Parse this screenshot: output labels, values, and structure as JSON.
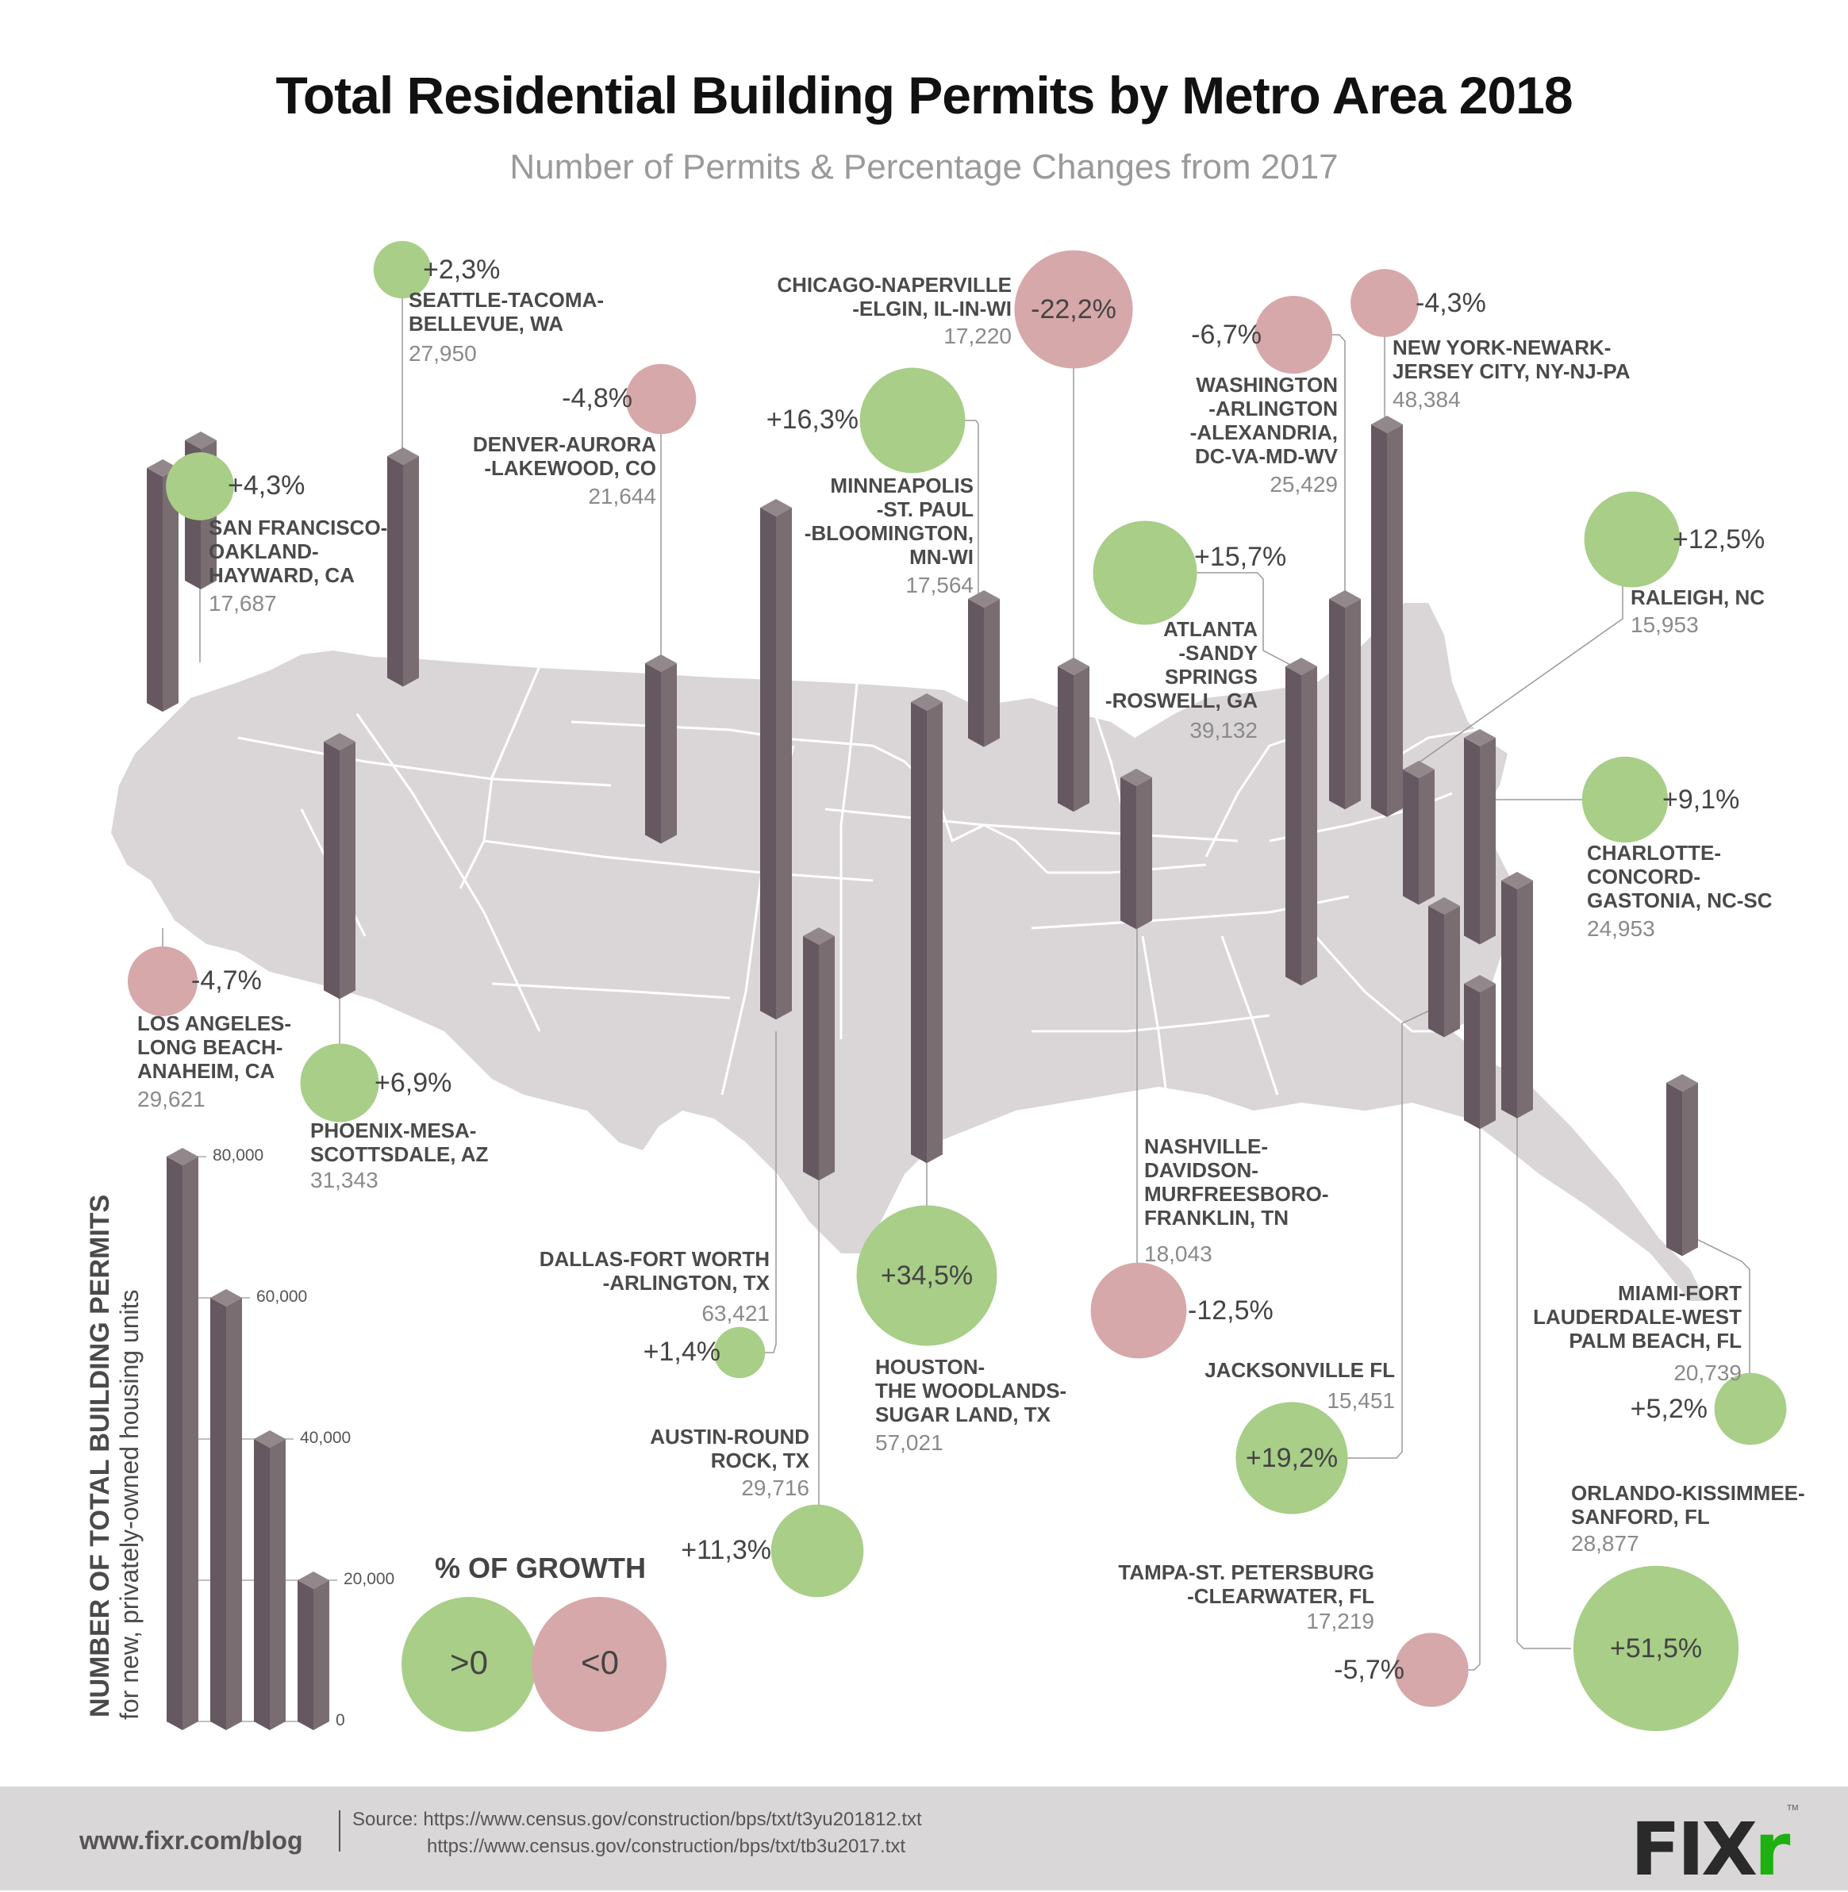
{
  "header": {
    "title": "Total Residential Building Permits by Metro Area 2018",
    "subtitle": "Number of Permits & Percentage Changes from 2017"
  },
  "colors": {
    "positive": "#a8ce88",
    "negative": "#d6a8a9",
    "bar_dark": "#655860",
    "bar_light": "#7a6d72",
    "bar_top": "#92878b",
    "map_fill": "#dad6d8",
    "leader_line": "#9a9a9a"
  },
  "chart_data": {
    "type": "map-bubble-bar",
    "title": "Total Residential Building Permits by Metro Area 2018",
    "subtitle": "Number of Permits & Percentage Changes from 2017",
    "value_axis": {
      "label": "NUMBER OF TOTAL BUILDING PERMITS",
      "sublabel": "for new, privately-owned housing units",
      "ticks": [
        0,
        20000,
        40000,
        60000,
        80000
      ],
      "tick_labels": [
        "0",
        "20,000",
        "40,000",
        "60,000",
        "80,000"
      ],
      "range": [
        0,
        80000
      ]
    },
    "legend": {
      "title": "% OF GROWTH",
      "items": [
        {
          "label": ">0",
          "meaning": "positive growth",
          "color": "positive"
        },
        {
          "label": "<0",
          "meaning": "negative growth",
          "color": "negative"
        }
      ]
    },
    "series": [
      {
        "name": "SEATTLE-TACOMA-\nBELLEVUE, WA",
        "permits": 27950,
        "permits_label": "27,950",
        "change": 2.3,
        "change_label": "+2,3%"
      },
      {
        "name": "SAN FRANCISCO-\nOAKLAND-\nHAYWARD, CA",
        "permits": 17687,
        "permits_label": "17,687",
        "change": 4.3,
        "change_label": "+4,3%"
      },
      {
        "name": "LOS ANGELES-\nLONG BEACH-\nANAHEIM, CA",
        "permits": 29621,
        "permits_label": "29,621",
        "change": -4.7,
        "change_label": "-4,7%"
      },
      {
        "name": "PHOENIX-MESA-\nSCOTTSDALE, AZ",
        "permits": 31343,
        "permits_label": "31,343",
        "change": 6.9,
        "change_label": "+6,9%"
      },
      {
        "name": "DENVER-AURORA\n-LAKEWOOD, CO",
        "permits": 21644,
        "permits_label": "21,644",
        "change": -4.8,
        "change_label": "-4,8%"
      },
      {
        "name": "DALLAS-FORT WORTH\n-ARLINGTON, TX",
        "permits": 63421,
        "permits_label": "63,421",
        "change": 1.4,
        "change_label": "+1,4%"
      },
      {
        "name": "AUSTIN-ROUND\nROCK, TX",
        "permits": 29716,
        "permits_label": "29,716",
        "change": 11.3,
        "change_label": "+11,3%"
      },
      {
        "name": "HOUSTON-\nTHE WOODLANDS-\nSUGAR LAND, TX",
        "permits": 57021,
        "permits_label": "57,021",
        "change": 34.5,
        "change_label": "+34,5%"
      },
      {
        "name": "MINNEAPOLIS\n-ST. PAUL\n-BLOOMINGTON,\nMN-WI",
        "permits": 17564,
        "permits_label": "17,564",
        "change": 16.3,
        "change_label": "+16,3%"
      },
      {
        "name": "CHICAGO-NAPERVILLE\n-ELGIN, IL-IN-WI",
        "permits": 17220,
        "permits_label": "17,220",
        "change": -22.2,
        "change_label": "-22,2%"
      },
      {
        "name": "NASHVILLE-\nDAVIDSON-\nMURFREESBORO-\nFRANKLIN, TN",
        "permits": 18043,
        "permits_label": "18,043",
        "change": -12.5,
        "change_label": "-12,5%"
      },
      {
        "name": "ATLANTA\n-SANDY\nSPRINGS\n-ROSWELL, GA",
        "permits": 39132,
        "permits_label": "39,132",
        "change": 15.7,
        "change_label": "+15,7%"
      },
      {
        "name": "WASHINGTON\n-ARLINGTON\n-ALEXANDRIA,\nDC-VA-MD-WV",
        "permits": 25429,
        "permits_label": "25,429",
        "change": -6.7,
        "change_label": "-6,7%"
      },
      {
        "name": "NEW YORK-NEWARK-\nJERSEY CITY, NY-NJ-PA",
        "permits": 48384,
        "permits_label": "48,384",
        "change": -4.3,
        "change_label": "-4,3%"
      },
      {
        "name": "RALEIGH, NC",
        "permits": 15953,
        "permits_label": "15,953",
        "change": 12.5,
        "change_label": "+12,5%"
      },
      {
        "name": "CHARLOTTE-\nCONCORD-\nGASTONIA, NC-SC",
        "permits": 24953,
        "permits_label": "24,953",
        "change": 9.1,
        "change_label": "+9,1%"
      },
      {
        "name": "JACKSONVILLE FL",
        "permits": 15451,
        "permits_label": "15,451",
        "change": 19.2,
        "change_label": "+19,2%"
      },
      {
        "name": "TAMPA-ST. PETERSBURG\n-CLEARWATER, FL",
        "permits": 17219,
        "permits_label": "17,219",
        "change": -5.7,
        "change_label": "-5,7%"
      },
      {
        "name": "ORLANDO-KISSIMMEE-\nSANFORD, FL",
        "permits": 28877,
        "permits_label": "28,877",
        "change": 51.5,
        "change_label": "+51,5%"
      },
      {
        "name": "MIAMI-FORT\nLAUDERDALE-WEST\nPALM BEACH, FL",
        "permits": 20739,
        "permits_label": "20,739",
        "change": 5.2,
        "change_label": "+5,2%"
      }
    ]
  },
  "footer": {
    "site": "www.fixr.com/blog",
    "source_line1": "Source: https://www.census.gov/construction/bps/txt/t3yu201812.txt",
    "source_line2": "https://www.census.gov/construction/bps/txt/tb3u2017.txt",
    "logo_main": "FIX",
    "logo_accent": "r",
    "trademark": "TM"
  }
}
